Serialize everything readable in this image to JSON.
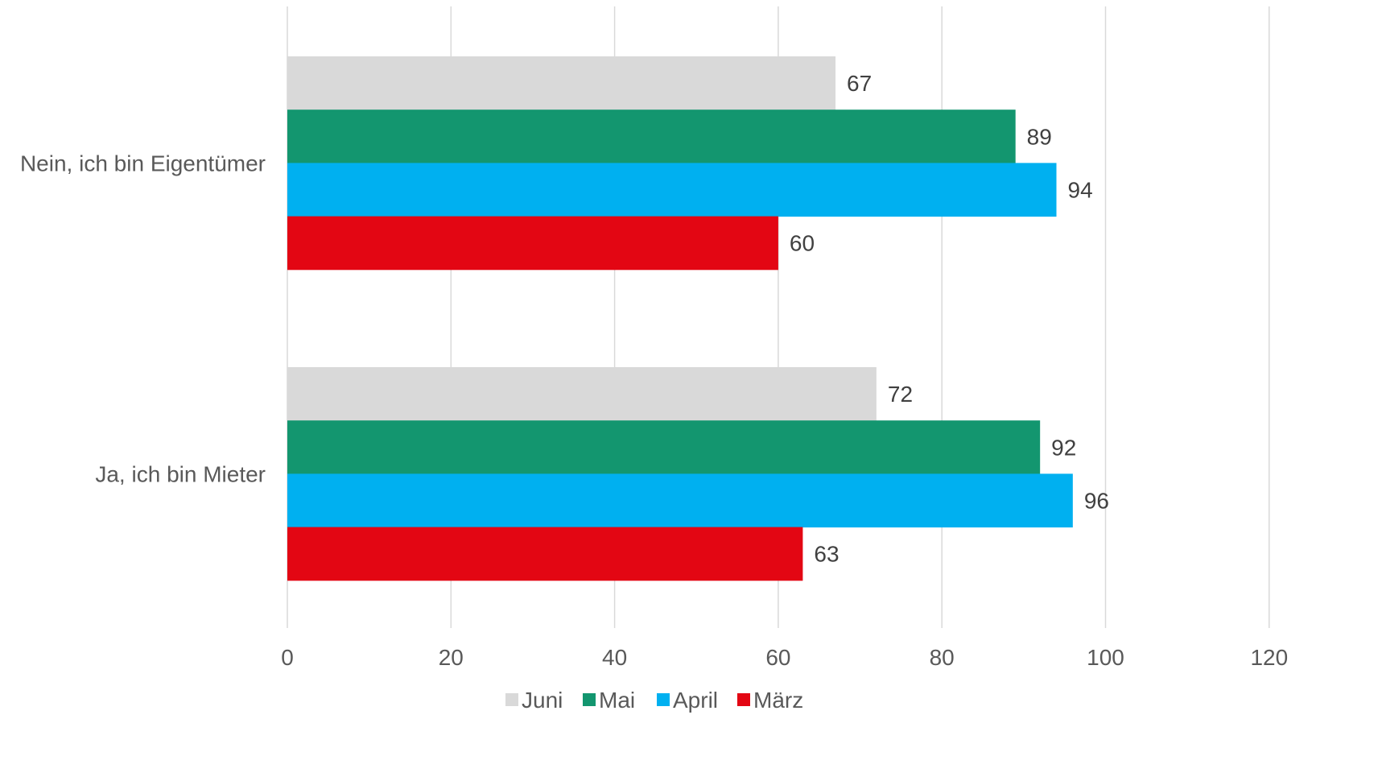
{
  "chart_data": {
    "type": "bar",
    "orientation": "horizontal",
    "title": "",
    "xlabel": "",
    "ylabel": "",
    "categories": [
      "Nein, ich bin Eigentümer",
      "Ja, ich bin Mieter"
    ],
    "series": [
      {
        "name": "Juni",
        "color": "#d9d9d9",
        "values": [
          67,
          72
        ]
      },
      {
        "name": "Mai",
        "color": "#13966f",
        "values": [
          89,
          92
        ]
      },
      {
        "name": "April",
        "color": "#00b0f0",
        "values": [
          94,
          96
        ]
      },
      {
        "name": "März",
        "color": "#e30613",
        "values": [
          60,
          63
        ]
      }
    ],
    "xlim": [
      0,
      120
    ],
    "x_ticks": [
      "0",
      "20",
      "40",
      "60",
      "80",
      "100",
      "120"
    ],
    "grid": "vertical",
    "legend_position": "bottom",
    "data_labels": true
  }
}
